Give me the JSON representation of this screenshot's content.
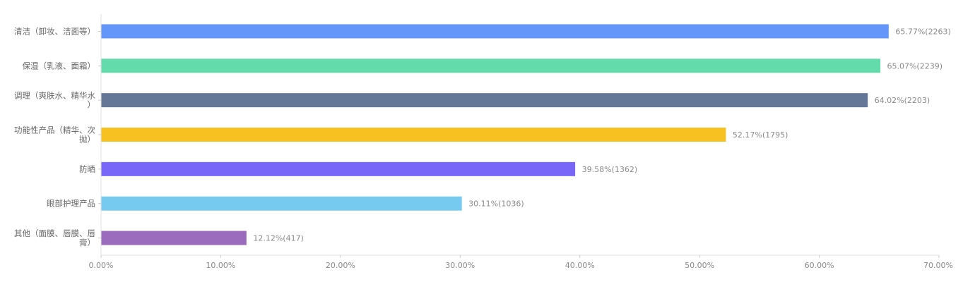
{
  "chart_data": {
    "type": "bar",
    "orientation": "horizontal",
    "title": "",
    "xlabel": "",
    "ylabel": "",
    "xlim": [
      0,
      70
    ],
    "x_ticks": [
      "0.00%",
      "10.00%",
      "20.00%",
      "30.00%",
      "40.00%",
      "50.00%",
      "60.00%",
      "70.00%"
    ],
    "grid": false,
    "categories": [
      "清洁（卸妆、洁面等）",
      "保湿（乳液、面霜）",
      "调理（爽肤水、精华水）",
      "功能性产品（精华、次抛）",
      "防晒",
      "眼部护理产品",
      "其他（面膜、唇膜、唇膏）"
    ],
    "category_lines": [
      [
        "清洁（卸妆、洁面等）"
      ],
      [
        "保湿（乳液、面霜）"
      ],
      [
        "调理（爽肤水、精华水",
        "）"
      ],
      [
        "功能性产品（精华、次",
        "抛）"
      ],
      [
        "防晒"
      ],
      [
        "眼部护理产品"
      ],
      [
        "其他（面膜、唇膜、唇",
        "膏）"
      ]
    ],
    "values": [
      65.77,
      65.07,
      64.02,
      52.17,
      39.58,
      30.11,
      12.12
    ],
    "counts": [
      2263,
      2239,
      2203,
      1795,
      1362,
      1036,
      417
    ],
    "data_labels": [
      "65.77%(2263)",
      "65.07%(2239)",
      "64.02%(2203)",
      "52.17%(1795)",
      "39.58%(1362)",
      "30.11%(1036)",
      "12.12%(417)"
    ],
    "colors": [
      "#6496fa",
      "#64dbaa",
      "#647796",
      "#f7c122",
      "#7766f7",
      "#76c9ef",
      "#9b6bbe"
    ]
  }
}
